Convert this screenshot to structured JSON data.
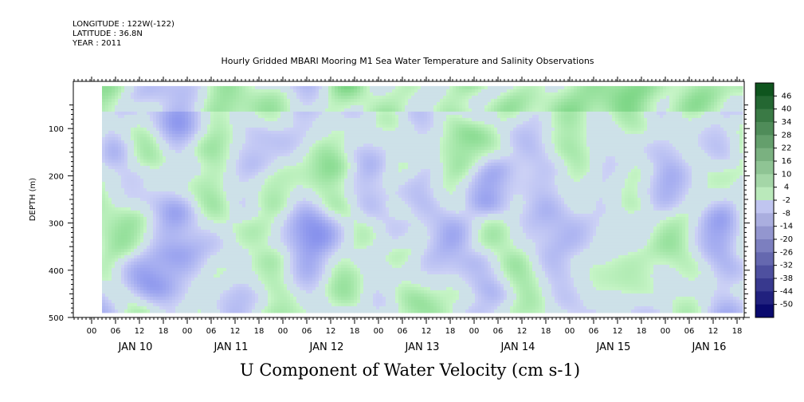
{
  "header": {
    "longitude": "LONGITUDE : 122W(-122)",
    "latitude": "LATITUDE : 36.8N",
    "year": "YEAR : 2011"
  },
  "title": "Hourly Gridded MBARI Mooring M1 Sea Water Temperature and Salinity Observations",
  "footer_title": "U Component of Water Velocity (cm s-1)",
  "colors": {
    "positive_light": "#c8f5c8",
    "positive_mid": "#5ee07a",
    "positive_dark": "#0f5a1e",
    "negative_light": "#c8cdf5",
    "negative_mid": "#5a6ae0",
    "negative_dark": "#0a0f6e"
  },
  "chart_data": {
    "type": "heatmap",
    "xlabel": "",
    "ylabel": "DEPTH (m)",
    "ylim": [
      500,
      0
    ],
    "y_ticks": [
      100,
      200,
      300,
      400,
      500
    ],
    "hour_tick_labels": [
      "00",
      "06",
      "12",
      "18"
    ],
    "day_labels": [
      "JAN 10",
      "JAN 11",
      "JAN 12",
      "JAN 13",
      "JAN 14",
      "JAN 15",
      "JAN 16"
    ],
    "colorbar": {
      "levels": [
        46,
        40,
        34,
        28,
        22,
        16,
        10,
        4,
        -2,
        -8,
        -14,
        -20,
        -26,
        -32,
        -38,
        -44,
        -50
      ],
      "range": [
        -50,
        52
      ]
    },
    "data_extent": {
      "depth_top": 10,
      "depth_bottom": 485
    },
    "field_description": "U component of water velocity, alternating positive and negative bands, mostly between -20 and 20 cm s-1"
  }
}
